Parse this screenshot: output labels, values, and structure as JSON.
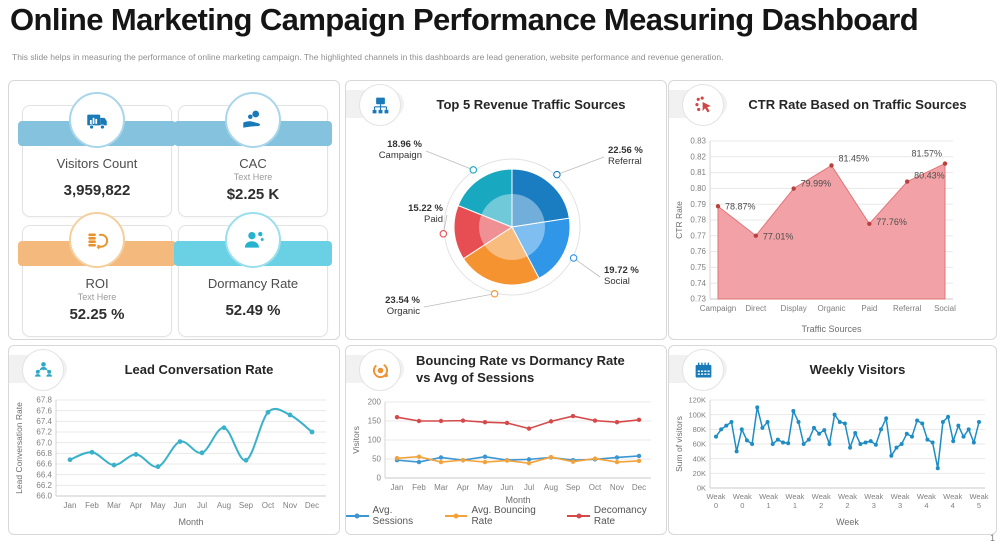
{
  "header": {
    "title": "Online Marketing Campaign Performance Measuring Dashboard",
    "subtitle": "This slide helps in measuring the performance of online marketing campaign. The highlighted channels in this dashboards are lead generation, website performance and revenue generation."
  },
  "footer": {
    "page_number": "1"
  },
  "kpis": [
    {
      "name": "Visitors Count",
      "subtitle": "",
      "value": "3,959,822",
      "ribbon_color": "#85c2de",
      "ring_color": "#a9d6ea",
      "icon": "traffic-truck",
      "icon_color": "#1a7ab8"
    },
    {
      "name": "CAC",
      "subtitle": "Text Here",
      "value": "$2.25 K",
      "ribbon_color": "#85c2de",
      "ring_color": "#a9d6ea",
      "icon": "hand-coin",
      "icon_color": "#1a7ab8"
    },
    {
      "name": "ROI",
      "subtitle": "Text Here",
      "value": "52.25 %",
      "ribbon_color": "#f4ba7d",
      "ring_color": "#f6cf9f",
      "icon": "coins-return",
      "icon_color": "#e8922e"
    },
    {
      "name": "Dormancy Rate",
      "subtitle": "",
      "value": "52.49 %",
      "ribbon_color": "#6ad0e3",
      "ring_color": "#9adfed",
      "icon": "user-gears",
      "icon_color": "#27b3d0"
    }
  ],
  "panels": {
    "pie": {
      "title": "Top 5 Revenue Traffic Sources",
      "icon": "sitemap",
      "icon_color": "#1a7ab8"
    },
    "ctr": {
      "title": "CTR Rate Based on Traffic Sources",
      "icon": "click",
      "icon_color": "#cf4747"
    },
    "lead": {
      "title": "Lead Conversation Rate",
      "icon": "lead-people",
      "icon_color": "#2da7c7"
    },
    "bounce": {
      "title": "Bouncing Rate vs Dormancy Rate",
      "title_line2": "vs Avg of Sessions",
      "icon": "bounce",
      "icon_color": "#ef9334"
    },
    "weekly": {
      "title": "Weekly Visitors",
      "icon": "calendar",
      "icon_color": "#1a7ab8"
    }
  },
  "chart_data": [
    {
      "id": "pie",
      "type": "pie",
      "title": "Top 5 Revenue Traffic Sources",
      "slices": [
        {
          "label": "Referral",
          "value": 22.56,
          "color": "#1a7dc2"
        },
        {
          "label": "Social",
          "value": 19.72,
          "color": "#3096e8"
        },
        {
          "label": "Organic",
          "value": 23.54,
          "color": "#f59331"
        },
        {
          "label": "Paid",
          "value": 15.22,
          "color": "#e64e53"
        },
        {
          "label": "Campaign",
          "value": 18.96,
          "color": "#18a8c0"
        }
      ]
    },
    {
      "id": "ctr",
      "type": "area",
      "title": "CTR Rate Based on Traffic Sources",
      "categories": [
        "Campaign",
        "Direct",
        "Display",
        "Organic",
        "Paid",
        "Referral",
        "Social"
      ],
      "values": [
        0.7887,
        0.7701,
        0.7999,
        0.8145,
        0.7776,
        0.8043,
        0.8157
      ],
      "point_labels": [
        "78.87%",
        "77.01%",
        "79.99%",
        "81.45%",
        "77.76%",
        "80.43%",
        "81.57%"
      ],
      "xlabel": "Traffic Sources",
      "ylabel": "CTR Rate",
      "ymin": 0.73,
      "ymax": 0.83,
      "ystep": 0.01,
      "fill_color": "#f2a2a6",
      "edge_color": "#e0767b",
      "dot_color": "#b8413f"
    },
    {
      "id": "lead",
      "type": "line",
      "title": "Lead Conversation Rate",
      "categories": [
        "Jan",
        "Feb",
        "Mar",
        "Apr",
        "May",
        "Jun",
        "Jul",
        "Aug",
        "Sep",
        "Oct",
        "Nov",
        "Dec"
      ],
      "values": [
        66.68,
        66.82,
        66.58,
        66.78,
        66.55,
        67.02,
        66.81,
        67.28,
        66.67,
        67.57,
        67.52,
        67.2
      ],
      "xlabel": "Month",
      "ylabel": "Lead Conversation Rate",
      "ymin": 66.0,
      "ymax": 67.8,
      "ystep": 0.2,
      "line_color": "#3ab1ca"
    },
    {
      "id": "bounce",
      "type": "line",
      "title": "Bouncing Rate vs Dormancy Rate vs Avg of Sessions",
      "categories": [
        "Jan",
        "Feb",
        "Mar",
        "Apr",
        "May",
        "Jun",
        "Jul",
        "Aug",
        "Sep",
        "Oct",
        "Nov",
        "Dec"
      ],
      "xlabel": "Month",
      "ylabel": "Visitors",
      "ymin": 0,
      "ymax": 200,
      "ystep": 50,
      "series": [
        {
          "name": "Avg. Sessions",
          "color": "#3b96d2",
          "values": [
            47,
            42,
            54,
            47,
            56,
            47,
            49,
            54,
            47,
            49,
            54,
            58
          ]
        },
        {
          "name": "Avg. Bouncing Rate",
          "color": "#f2a33c",
          "values": [
            52,
            56,
            42,
            47,
            42,
            46,
            39,
            55,
            43,
            51,
            42,
            45
          ]
        },
        {
          "name": "Decomancy Rate",
          "color": "#d64949",
          "values": [
            160,
            150,
            150,
            151,
            147,
            145,
            130,
            149,
            163,
            151,
            147,
            153
          ]
        }
      ]
    },
    {
      "id": "weekly",
      "type": "line",
      "title": "Weekly Visitors",
      "x_labels": [
        [
          "Weak",
          "0"
        ],
        [
          "Weak",
          "0"
        ],
        [
          "Weak",
          "1"
        ],
        [
          "Weak",
          "1"
        ],
        [
          "Weak",
          "2"
        ],
        [
          "Weak",
          "2"
        ],
        [
          "Weak",
          "3"
        ],
        [
          "Weak",
          "3"
        ],
        [
          "Weak",
          "4"
        ],
        [
          "Weak",
          "4"
        ],
        [
          "Weak",
          "5"
        ]
      ],
      "values": [
        70,
        80,
        85,
        90,
        50,
        80,
        65,
        60,
        110,
        82,
        90,
        60,
        66,
        62,
        61,
        105,
        90,
        60,
        66,
        82,
        74,
        79,
        60,
        100,
        90,
        88,
        55,
        75,
        60,
        62,
        64,
        59,
        80,
        95,
        44,
        55,
        60,
        74,
        70,
        92,
        88,
        66,
        62,
        27,
        90,
        97,
        64,
        85,
        70,
        80,
        62,
        90
      ],
      "xlabel": "Week",
      "ylabel": "Sum of visitors",
      "ymin": 0,
      "ymax": 120,
      "ystep": 20,
      "ytick_suffix": "K",
      "line_color": "#1f8dc4"
    }
  ]
}
